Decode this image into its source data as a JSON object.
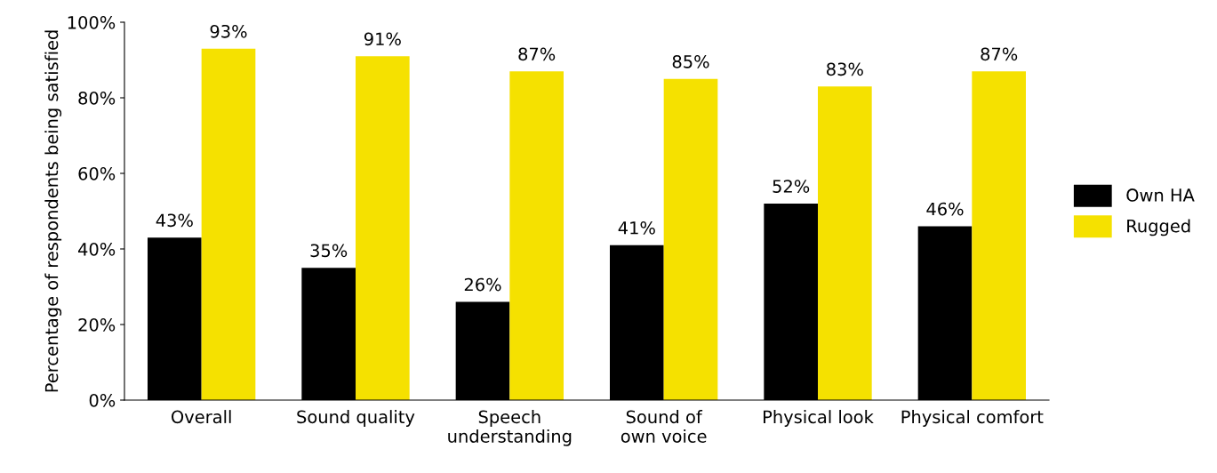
{
  "chart_data": {
    "type": "bar",
    "ylabel": "Percentage of respondents being satisfied",
    "categories": [
      "Overall",
      "Sound quality",
      "Speech\nunderstanding",
      "Sound of\nown voice",
      "Physical look",
      "Physical comfort"
    ],
    "series": [
      {
        "name": "Own HA",
        "color": "#000000",
        "values": [
          43,
          35,
          26,
          41,
          52,
          46
        ],
        "value_labels": [
          "43%",
          "35%",
          "26%",
          "41%",
          "52%",
          "46%"
        ]
      },
      {
        "name": "Rugged",
        "color": "#f5e100",
        "values": [
          93,
          91,
          87,
          85,
          83,
          87
        ],
        "value_labels": [
          "93%",
          "91%",
          "87%",
          "85%",
          "83%",
          "87%"
        ]
      }
    ],
    "ylim": [
      0,
      100
    ],
    "yticks": [
      {
        "value": 0,
        "label": "0%"
      },
      {
        "value": 20,
        "label": "20%"
      },
      {
        "value": 40,
        "label": "40%"
      },
      {
        "value": 60,
        "label": "60%"
      },
      {
        "value": 80,
        "label": "80%"
      },
      {
        "value": 100,
        "label": "100%"
      }
    ],
    "grid": false,
    "legend": "right"
  }
}
